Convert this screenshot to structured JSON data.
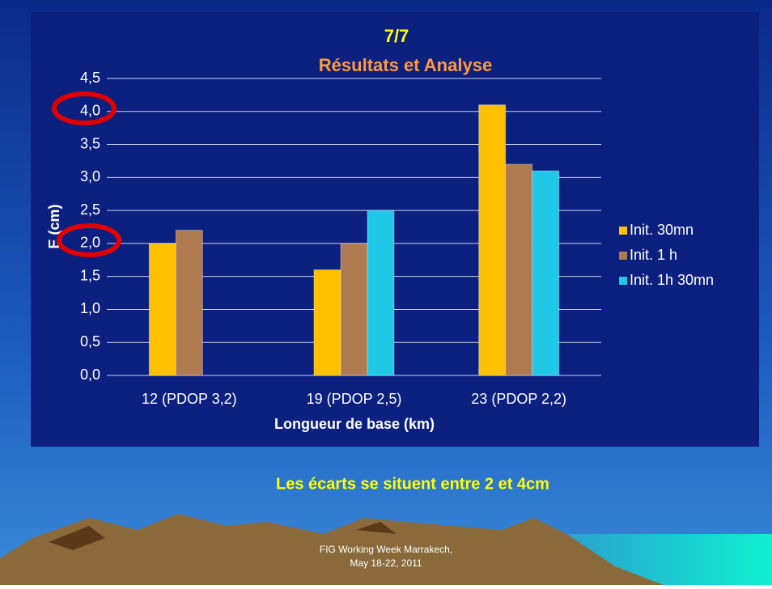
{
  "chart_data": {
    "type": "bar",
    "title": "7/7",
    "subtitle": "Résultats et Analyse",
    "x_label": "Longueur de base (km)",
    "y_label": "E (cm)",
    "categories": [
      "12 (PDOP 3,2)",
      "19 (PDOP 2,5)",
      "23 (PDOP 2,2)"
    ],
    "series": [
      {
        "name": "Init. 30mn",
        "color": "#ffc000",
        "values": [
          2.0,
          1.6,
          4.1
        ]
      },
      {
        "name": "Init. 1 h",
        "color": "#b07a50",
        "values": [
          2.2,
          2.0,
          3.2
        ]
      },
      {
        "name": "Init. 1h 30mn",
        "color": "#20c8e8",
        "values": [
          null,
          2.5,
          3.1
        ]
      }
    ],
    "ylim": [
      0,
      4.5
    ],
    "yticks": [
      {
        "value": 0,
        "label": "0,0"
      },
      {
        "value": 0.5,
        "label": "0,5"
      },
      {
        "value": 1,
        "label": "1,0"
      },
      {
        "value": 1.5,
        "label": "1,5"
      },
      {
        "value": 2,
        "label": "2,0"
      },
      {
        "value": 2.5,
        "label": "2,5"
      },
      {
        "value": 3,
        "label": "3,0"
      },
      {
        "value": 3.5,
        "label": "3,5"
      },
      {
        "value": 4,
        "label": "4,0"
      },
      {
        "value": 4.5,
        "label": "4,5"
      }
    ],
    "grid": true,
    "legend": "right",
    "annotation": "Les écarts se situent entre 2 et 4cm",
    "footer": [
      "FIG Working Week Marrakech,",
      "May 18-22, 2011"
    ]
  }
}
